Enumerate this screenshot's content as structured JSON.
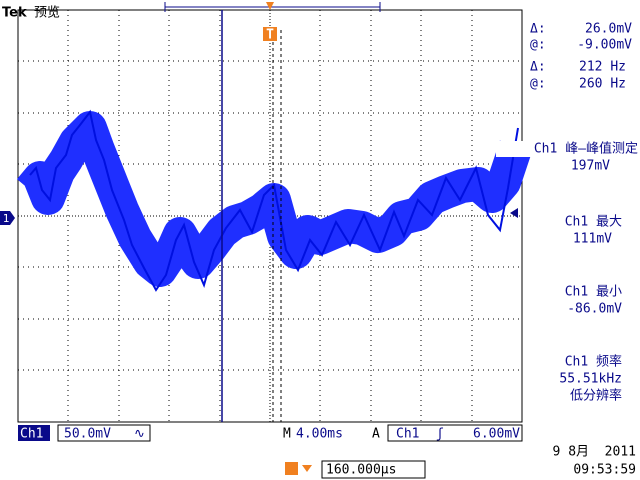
{
  "header": {
    "brand": "Tek",
    "mode": "预览"
  },
  "cursors": {
    "voltage": {
      "delta_label": "Δ:",
      "delta": "26.0mV",
      "at_label": "@:",
      "at": "-9.00mV"
    },
    "frequency": {
      "delta_label": "Δ:",
      "delta": "212 Hz",
      "at_label": "@:",
      "at": "260 Hz"
    }
  },
  "measurements": [
    {
      "label": "Ch1 峰—峰值测定",
      "value": "197mV"
    },
    {
      "label": "Ch1 最大",
      "value": "111mV"
    },
    {
      "label": "Ch1 最小",
      "value": "-86.0mV"
    },
    {
      "label": "Ch1 频率",
      "value": "55.51kHz",
      "note": "低分辨率"
    }
  ],
  "status": {
    "channel": "Ch1",
    "scale": "50.0mV",
    "timebase_label": "M",
    "timebase": "4.00ms",
    "trigger_label": "A",
    "trigger_channel": "Ch1",
    "trigger_level": "6.00mV",
    "trigger_position": "160.000µs",
    "date": "9 8月  2011",
    "time": "09:53:59"
  },
  "markers": {
    "channel": "1",
    "trigger": "T"
  }
}
